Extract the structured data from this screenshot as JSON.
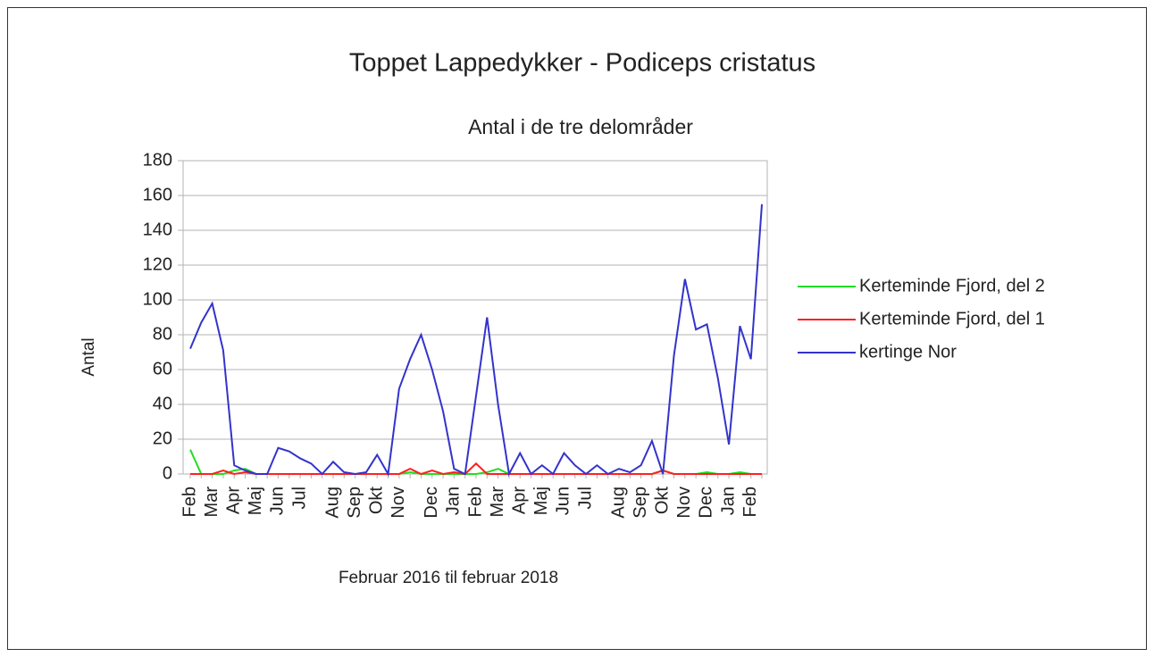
{
  "chart_data": {
    "type": "line",
    "title": "Toppet Lappedykker - Podiceps cristatus",
    "subtitle": "Antal i de tre delområder",
    "y_label": "Antal",
    "x_label": "Februar 2016 til februar 2018",
    "categories": [
      "Feb",
      null,
      "Mar",
      null,
      "Apr",
      null,
      "Maj",
      null,
      "Jun",
      null,
      "Jul",
      null,
      null,
      "Aug",
      null,
      "Sep",
      null,
      "Okt",
      null,
      "Nov",
      null,
      null,
      "Dec",
      null,
      "Jan",
      null,
      "Feb",
      null,
      "Mar",
      null,
      "Apr",
      null,
      "Maj",
      null,
      "Jun",
      null,
      "Jul",
      null,
      null,
      "Aug",
      null,
      "Sep",
      null,
      "Okt",
      null,
      "Nov",
      null,
      "Dec",
      null,
      "Jan",
      null,
      "Feb",
      null
    ],
    "series": [
      {
        "name": "Kerteminde Fjord, del 2",
        "color": "#22dd22",
        "values": [
          14,
          0,
          0,
          0,
          2,
          3,
          0,
          0,
          0,
          0,
          0,
          0,
          0,
          0,
          0,
          0,
          0,
          0,
          0,
          0,
          1,
          0,
          0,
          0,
          0,
          0,
          0,
          1,
          3,
          0,
          0,
          0,
          0,
          0,
          0,
          0,
          0,
          0,
          0,
          0,
          0,
          0,
          0,
          2,
          0,
          0,
          0,
          1,
          0,
          0,
          1,
          0,
          0
        ]
      },
      {
        "name": "Kerteminde Fjord, del 1",
        "color": "#ff2020",
        "values": [
          0,
          0,
          0,
          2,
          0,
          1,
          0,
          0,
          0,
          0,
          0,
          0,
          0,
          0,
          0,
          0,
          0,
          0,
          0,
          0,
          3,
          0,
          2,
          0,
          1,
          0,
          6,
          0,
          0,
          0,
          0,
          0,
          0,
          0,
          0,
          0,
          0,
          0,
          0,
          0,
          0,
          0,
          0,
          2,
          0,
          0,
          0,
          0,
          0,
          0,
          0,
          0,
          0
        ]
      },
      {
        "name": "kertinge Nor",
        "color": "#3333cc",
        "values": [
          72,
          87,
          98,
          71,
          5,
          2,
          0,
          0,
          15,
          13,
          9,
          6,
          0,
          7,
          1,
          0,
          1,
          11,
          0,
          49,
          66,
          80,
          60,
          36,
          3,
          0,
          45,
          90,
          40,
          0,
          12,
          0,
          5,
          0,
          12,
          5,
          0,
          5,
          0,
          3,
          1,
          5,
          19,
          0,
          68,
          112,
          83,
          86,
          55,
          17,
          85,
          66,
          155
        ]
      }
    ],
    "ylim": [
      0,
      180
    ],
    "yticks": [
      0,
      20,
      40,
      60,
      80,
      100,
      120,
      140,
      160,
      180
    ],
    "grid": true,
    "legend": "right"
  }
}
